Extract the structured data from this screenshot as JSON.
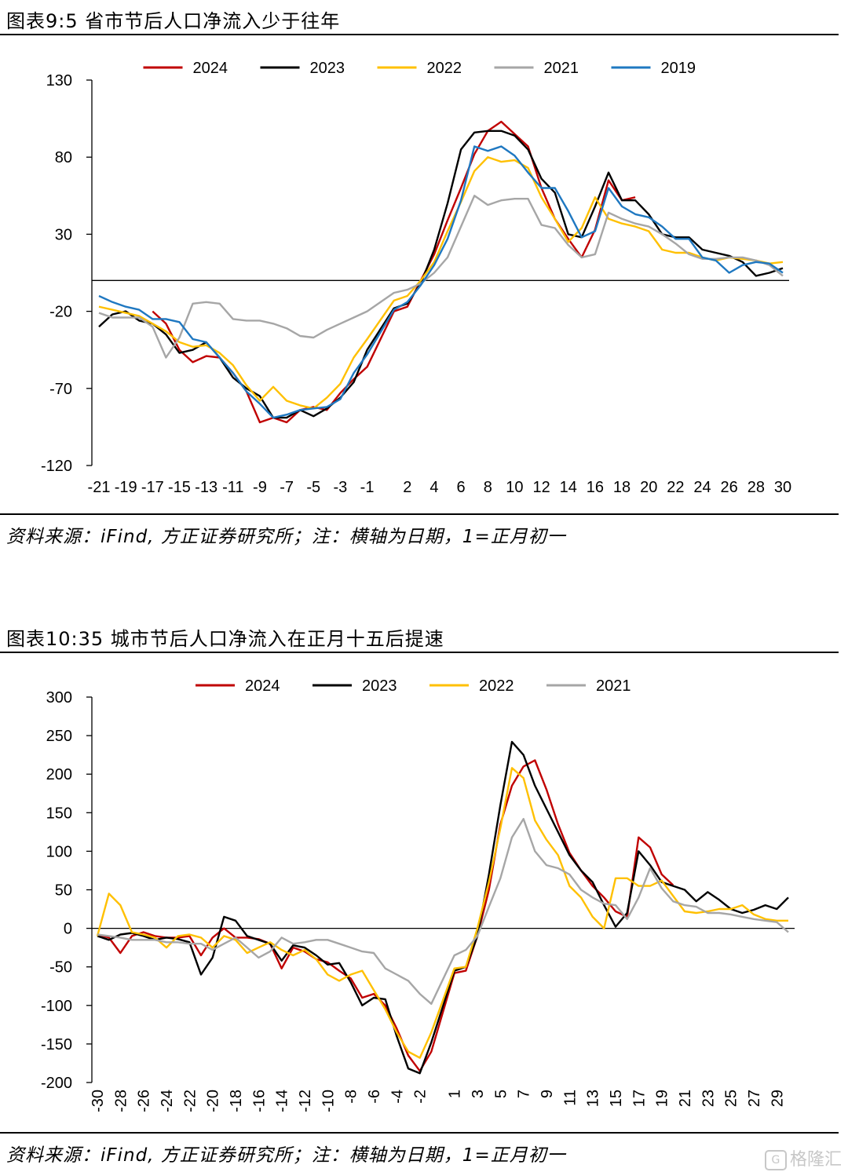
{
  "figures": [
    {
      "title": "图表9:5 省市节后人口净流入少于往年",
      "source": "资料来源：iFind, 方正证券研究所；注：横轴为日期，1=正月初一"
    },
    {
      "title": "图表10:35 城市节后人口净流入在正月十五后提速",
      "source": "资料来源：iFind, 方正证券研究所；注：横轴为日期，1=正月初一"
    }
  ],
  "watermark": "格隆汇",
  "chart_data": [
    {
      "type": "line",
      "title": "",
      "xlabel": "",
      "ylabel": "",
      "ylim": [
        -120,
        130
      ],
      "yticks": [
        130,
        80,
        30,
        -20,
        -70,
        -120
      ],
      "xlim": [
        -21,
        30
      ],
      "xtick_labels": [
        "-21",
        "-19",
        "-17",
        "-15",
        "-13",
        "-11",
        "-9",
        "-7",
        "-5",
        "-3",
        "-1",
        "2",
        "4",
        "6",
        "8",
        "10",
        "12",
        "14",
        "16",
        "18",
        "20",
        "22",
        "24",
        "26",
        "28",
        "30"
      ],
      "xtick_label_rotation": 0,
      "grid": false,
      "legend_position": "top-center",
      "x": [
        -21,
        -20,
        -19,
        -18,
        -17,
        -16,
        -15,
        -14,
        -13,
        -12,
        -11,
        -10,
        -9,
        -8,
        -7,
        -6,
        -5,
        -4,
        -3,
        -2,
        -1,
        1,
        2,
        3,
        4,
        5,
        6,
        7,
        8,
        9,
        10,
        11,
        12,
        13,
        14,
        15,
        16,
        17,
        18,
        19,
        20,
        21,
        22,
        23,
        24,
        25,
        26,
        27,
        28,
        29,
        30
      ],
      "series": [
        {
          "name": "2024",
          "color": "#c00000",
          "values": [
            null,
            null,
            null,
            null,
            -20,
            -28,
            -45,
            -53,
            -49,
            -50,
            -60,
            -72,
            -92,
            -89,
            -92,
            -84,
            -82,
            -84,
            -73,
            -64,
            -56,
            -20,
            -17,
            0,
            17,
            39,
            60,
            82,
            97,
            103,
            95,
            87,
            60,
            40,
            27,
            15,
            33,
            65,
            52,
            54,
            null,
            null,
            null,
            null,
            null,
            null,
            null,
            null,
            null,
            null,
            null
          ]
        },
        {
          "name": "2023",
          "color": "#000000",
          "values": [
            -30,
            -22,
            -20,
            -26,
            -28,
            -35,
            -47,
            -45,
            -40,
            -50,
            -63,
            -70,
            -75,
            -89,
            -89,
            -84,
            -88,
            -83,
            -76,
            -66,
            -45,
            -18,
            -15,
            -2,
            20,
            50,
            85,
            96,
            97,
            97,
            94,
            85,
            66,
            57,
            30,
            28,
            48,
            70,
            52,
            52,
            43,
            30,
            28,
            28,
            20,
            18,
            16,
            12,
            3,
            5,
            8
          ]
        },
        {
          "name": "2022",
          "color": "#ffc000",
          "values": [
            -17,
            -19,
            -21,
            -23,
            -28,
            -33,
            -40,
            -43,
            -42,
            -47,
            -55,
            -68,
            -78,
            -69,
            -78,
            -81,
            -83,
            -76,
            -67,
            -50,
            -38,
            -13,
            -10,
            0,
            12,
            32,
            51,
            71,
            80,
            77,
            78,
            73,
            54,
            40,
            25,
            34,
            54,
            40,
            37,
            35,
            32,
            20,
            18,
            18,
            15,
            13,
            15,
            14,
            13,
            11,
            12
          ]
        },
        {
          "name": "2021",
          "color": "#a6a6a6",
          "values": [
            -21,
            -24,
            -24,
            -24,
            -30,
            -50,
            -37,
            -15,
            -14,
            -15,
            -25,
            -26,
            -26,
            -28,
            -31,
            -36,
            -37,
            -32,
            -28,
            -24,
            -20,
            -8,
            -6,
            -2,
            5,
            15,
            35,
            55,
            49,
            52,
            53,
            53,
            36,
            34,
            23,
            15,
            17,
            44,
            40,
            37,
            35,
            30,
            24,
            17,
            14,
            14,
            15,
            15,
            13,
            10,
            3
          ]
        },
        {
          "name": "2019",
          "color": "#1f78c1",
          "values": [
            -10,
            -14,
            -17,
            -19,
            -25,
            -25,
            -27,
            -38,
            -40,
            -50,
            -60,
            -72,
            -80,
            -89,
            -87,
            -84,
            -83,
            -82,
            -77,
            -60,
            -48,
            -19,
            -14,
            -3,
            10,
            27,
            52,
            87,
            84,
            87,
            81,
            70,
            60,
            60,
            45,
            28,
            32,
            60,
            48,
            43,
            41,
            35,
            27,
            27,
            15,
            13,
            5,
            10,
            12,
            11,
            5
          ]
        }
      ]
    },
    {
      "type": "line",
      "title": "",
      "xlabel": "",
      "ylabel": "",
      "ylim": [
        -200,
        300
      ],
      "yticks": [
        300,
        250,
        200,
        150,
        100,
        50,
        0,
        -50,
        -100,
        -150,
        -200
      ],
      "xlim": [
        -30,
        30
      ],
      "xtick_labels": [
        "-30",
        "-28",
        "-26",
        "-24",
        "-22",
        "-20",
        "-18",
        "-16",
        "-14",
        "-12",
        "-10",
        "-8",
        "-6",
        "-4",
        "-2",
        "1",
        "3",
        "5",
        "7",
        "9",
        "11",
        "13",
        "15",
        "17",
        "19",
        "21",
        "23",
        "25",
        "27",
        "29"
      ],
      "xtick_label_rotation": -90,
      "grid": false,
      "legend_position": "top-center",
      "x": [
        -30,
        -29,
        -28,
        -27,
        -26,
        -25,
        -24,
        -23,
        -22,
        -21,
        -20,
        -19,
        -18,
        -17,
        -16,
        -15,
        -14,
        -13,
        -12,
        -11,
        -10,
        -9,
        -8,
        -7,
        -6,
        -5,
        -4,
        -3,
        -2,
        -1,
        1,
        2,
        3,
        4,
        5,
        6,
        7,
        8,
        9,
        10,
        11,
        12,
        13,
        14,
        15,
        16,
        17,
        18,
        19,
        20,
        21,
        22,
        23,
        24,
        25,
        26,
        27,
        28,
        29,
        30
      ],
      "series": [
        {
          "name": "2024",
          "color": "#c00000",
          "values": [
            -8,
            -12,
            -32,
            -10,
            -5,
            -10,
            -12,
            -12,
            -10,
            -35,
            -12,
            0,
            -12,
            -12,
            -14,
            -20,
            -52,
            -25,
            -30,
            -40,
            -44,
            -55,
            -65,
            -90,
            -85,
            -100,
            -130,
            -165,
            -185,
            -160,
            -58,
            -55,
            -10,
            50,
            135,
            185,
            210,
            218,
            180,
            135,
            98,
            75,
            55,
            40,
            22,
            15,
            118,
            105,
            70,
            56,
            null,
            null,
            null,
            null,
            null,
            null,
            null,
            null,
            null,
            null
          ]
        },
        {
          "name": "2023",
          "color": "#000000",
          "values": [
            -10,
            -15,
            -8,
            -6,
            -10,
            -15,
            -12,
            -14,
            -18,
            -60,
            -38,
            15,
            10,
            -10,
            -15,
            -20,
            -42,
            -22,
            -25,
            -35,
            -47,
            -45,
            -70,
            -100,
            -90,
            -92,
            -140,
            -182,
            -188,
            -148,
            -55,
            -50,
            -10,
            70,
            160,
            242,
            225,
            185,
            155,
            125,
            95,
            75,
            60,
            30,
            2,
            20,
            100,
            82,
            60,
            55,
            50,
            35,
            47,
            37,
            25,
            20,
            24,
            30,
            25,
            40
          ]
        },
        {
          "name": "2022",
          "color": "#ffc000",
          "values": [
            -10,
            45,
            30,
            -5,
            -8,
            -12,
            -25,
            -10,
            -8,
            -12,
            -25,
            -10,
            -15,
            -32,
            -25,
            -18,
            -28,
            -35,
            -28,
            -40,
            -60,
            -68,
            -60,
            -55,
            -80,
            -105,
            -135,
            -160,
            -168,
            -135,
            -52,
            -50,
            0,
            60,
            130,
            208,
            195,
            140,
            115,
            95,
            55,
            40,
            15,
            0,
            65,
            65,
            55,
            55,
            62,
            42,
            22,
            20,
            22,
            25,
            25,
            30,
            18,
            12,
            10,
            10
          ]
        },
        {
          "name": "2021",
          "color": "#a6a6a6",
          "values": [
            -8,
            -10,
            -12,
            -15,
            -15,
            -15,
            -18,
            -18,
            -20,
            -20,
            -28,
            -20,
            -12,
            -25,
            -38,
            -30,
            -12,
            -20,
            -18,
            -15,
            -15,
            -20,
            -25,
            -30,
            -32,
            -52,
            -60,
            -68,
            -85,
            -98,
            -35,
            -28,
            -10,
            28,
            65,
            118,
            142,
            100,
            82,
            78,
            70,
            50,
            40,
            32,
            30,
            12,
            40,
            78,
            52,
            35,
            30,
            28,
            20,
            20,
            18,
            15,
            12,
            10,
            8,
            -5
          ]
        }
      ]
    }
  ]
}
